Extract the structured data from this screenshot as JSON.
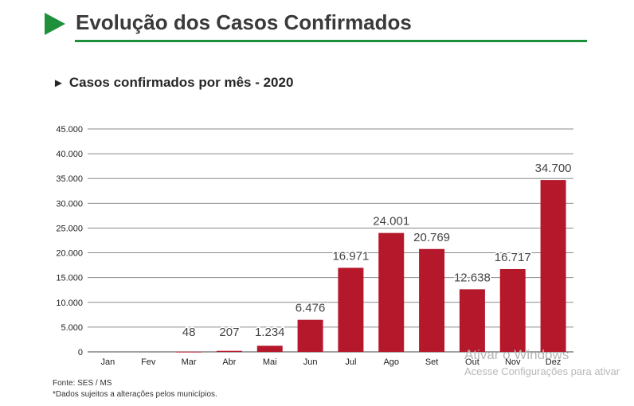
{
  "header": {
    "title": "Evolução dos Casos Confirmados",
    "subtitle_marker": "►",
    "subtitle": "Casos confirmados por mês - 2020",
    "accent_color": "#1e8f3a"
  },
  "chart_data": {
    "type": "bar",
    "title": "Casos confirmados por mês - 2020",
    "xlabel": "",
    "ylabel": "",
    "categories": [
      "Jan",
      "Fev",
      "Mar",
      "Abr",
      "Mai",
      "Jun",
      "Jul",
      "Ago",
      "Set",
      "Out",
      "Nov",
      "Dez"
    ],
    "values": [
      0,
      0,
      48,
      207,
      1234,
      6476,
      16971,
      24001,
      20769,
      12638,
      16717,
      34700
    ],
    "data_labels": [
      "",
      "",
      "48",
      "207",
      "1.234",
      "6.476",
      "16.971",
      "24.001",
      "20.769",
      "12.638",
      "16.717",
      "34.700"
    ],
    "yticks": [
      0,
      5000,
      10000,
      15000,
      20000,
      25000,
      30000,
      35000,
      40000,
      45000
    ],
    "ytick_labels": [
      "0",
      "5.000",
      "10.000",
      "15.000",
      "20.000",
      "25.000",
      "30.000",
      "35.000",
      "40.000",
      "45.000"
    ],
    "ylim": [
      0,
      45000
    ],
    "grid": true,
    "legend": "none",
    "bar_color": "#b5182b"
  },
  "footer": {
    "source": "Fonte: SES / MS",
    "note": "*Dados sujeitos a alterações pelos municípios."
  },
  "watermark": {
    "line1": "Ativar o Windows",
    "line2": "Acesse Configurações para ativar"
  }
}
